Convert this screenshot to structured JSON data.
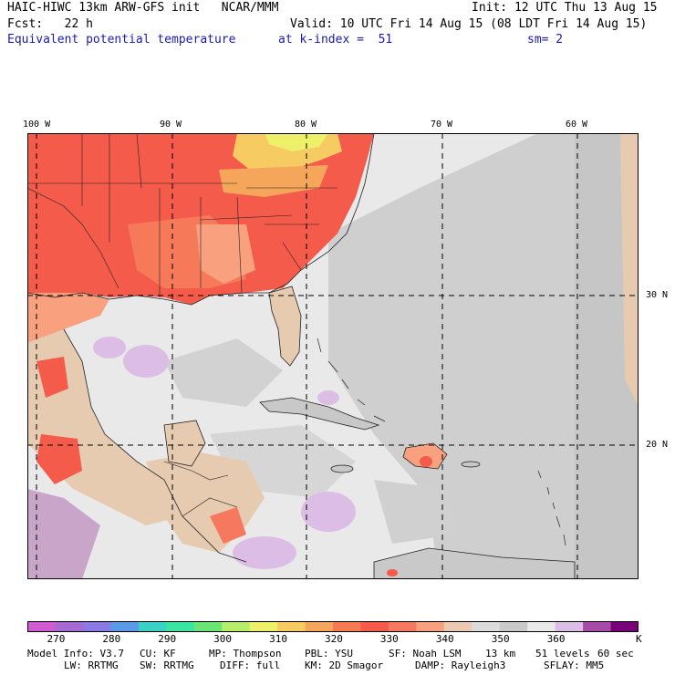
{
  "header": {
    "line1_left": "HAIC-HIWC 13km ARW-GFS init   NCAR/MMM",
    "line1_right": "Init: 12 UTC Thu 13 Aug 15",
    "line2_left": "Fcst:   22 h",
    "line2_right": "Valid: 10 UTC Fri 14 Aug 15 (08 LDT Fri 14 Aug 15)",
    "field_name": "Equivalent potential temperature",
    "level": "at k-index =  51",
    "smoothing": "sm= 2"
  },
  "map": {
    "lon_labels": [
      "100 W",
      "90 W",
      "80 W",
      "70 W",
      "60 W"
    ],
    "lat_labels": [
      "30 N",
      "20 N"
    ],
    "colors": {
      "warm_high": "#f45b4b",
      "warm_mid": "#f9a07f",
      "warm_top": "#ffe66a",
      "neutral_light": "#e9e9e9",
      "neutral_mid": "#c8c8c8",
      "land_tan": "#e6cbb1",
      "cool_purple": "#dcbde6",
      "border": "#222222"
    }
  },
  "colorbar": {
    "colors": [
      "#d25ad2",
      "#a66ad2",
      "#8a7ae6",
      "#5a9ae6",
      "#3ad2c6",
      "#3ae6a2",
      "#6ae676",
      "#b6ee6a",
      "#eef06a",
      "#f6cc62",
      "#f6a65a",
      "#f67a52",
      "#f45b4b",
      "#f6785e",
      "#f9a07f",
      "#eccab2",
      "#dcdcdc",
      "#c9c9c9",
      "#e9e9e9",
      "#dcbde6",
      "#a84aa8",
      "#7a007a"
    ],
    "labels": [
      "270",
      "280",
      "290",
      "300",
      "310",
      "320",
      "330",
      "340",
      "350",
      "360"
    ],
    "unit": "K"
  },
  "footer": {
    "line1": [
      "Model Info: V3.7",
      "CU: KF",
      "MP: Thompson",
      "PBL: YSU",
      "SF: Noah LSM",
      "13 km",
      "51 levels",
      "60 sec"
    ],
    "line2": [
      "LW: RRTMG",
      "SW: RRTMG",
      "DIFF: full",
      "KM: 2D Smagor",
      "DAMP: Rayleigh3",
      "SFLAY: MM5"
    ]
  }
}
